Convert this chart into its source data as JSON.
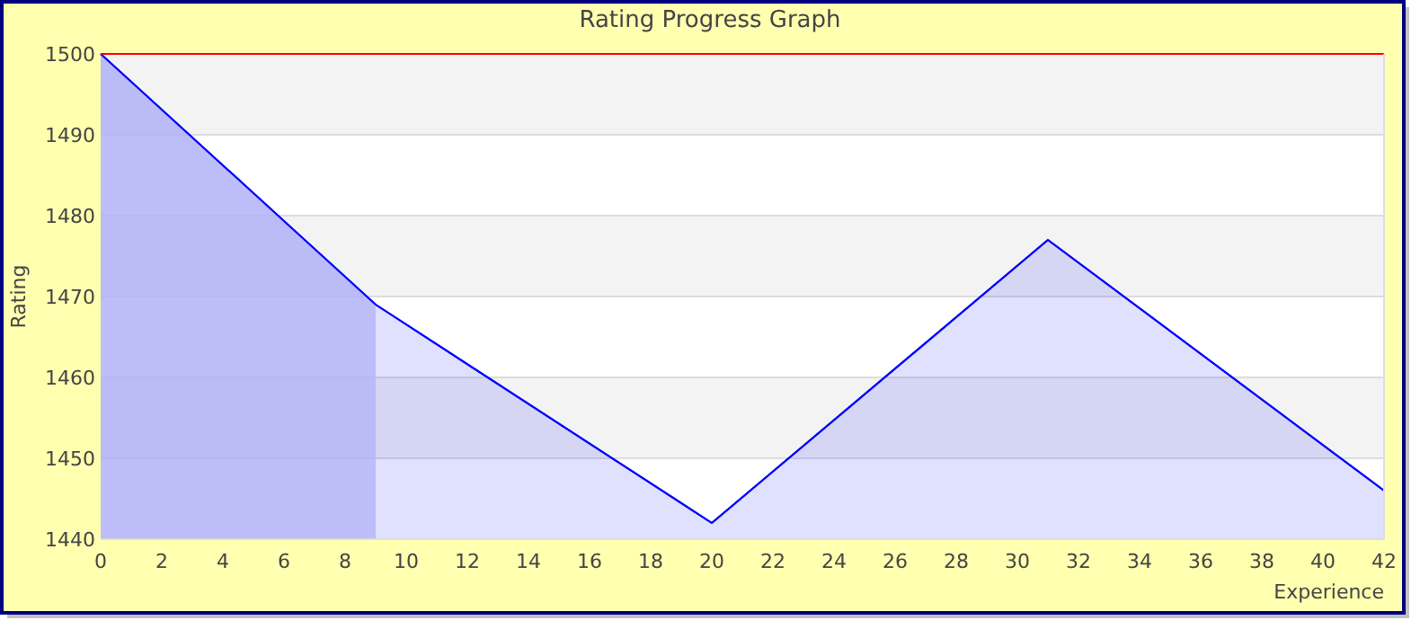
{
  "chart_data": {
    "type": "area",
    "title": "Rating Progress Graph",
    "xlabel": "Experience",
    "ylabel": "Rating",
    "x": [
      0,
      9,
      20,
      31,
      42
    ],
    "series": [
      {
        "color": "#0000ff",
        "values": [
          1500,
          1469,
          1442,
          1477,
          1446
        ]
      }
    ],
    "xlim": [
      0,
      42
    ],
    "xticks": [
      0,
      2,
      4,
      6,
      8,
      10,
      12,
      14,
      16,
      18,
      20,
      22,
      24,
      26,
      28,
      30,
      32,
      34,
      36,
      38,
      40,
      42
    ],
    "ylim": [
      1440,
      1500
    ],
    "yticks": [
      1440,
      1450,
      1460,
      1470,
      1480,
      1490,
      1500
    ],
    "grid": "y",
    "ref_lines": [
      {
        "axis": "y",
        "value": 1500,
        "color": "#ff0000"
      }
    ],
    "bands": [
      {
        "axis": "x",
        "from": 0,
        "to": 9,
        "color": "#b4b4f8"
      }
    ]
  }
}
